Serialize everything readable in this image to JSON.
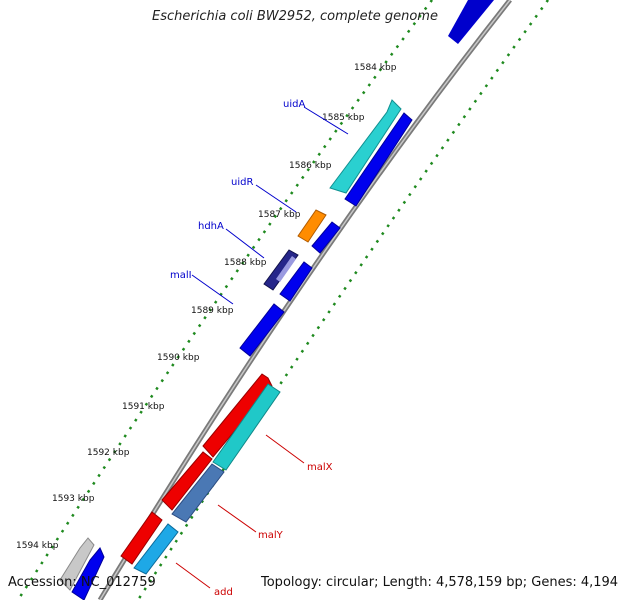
{
  "title": "Escherichia coli BW2952, complete genome",
  "footer": {
    "accession": "Accession: NC_012759",
    "stats": "Topology: circular; Length: 4,578,159 bp; Genes: 4,194"
  },
  "colors": {
    "backbone": "#8a8a8a",
    "tick_dots": "#1f8a1f",
    "forward_gene": "#0000ee",
    "reverse_gene": "#ee0000",
    "label_forward": "#0000cc",
    "label_reverse": "#cc0000"
  },
  "ticks": [
    "1584 kbp",
    "1585 kbp",
    "1586 kbp",
    "1587 kbp",
    "1588 kbp",
    "1589 kbp",
    "1590 kbp",
    "1591 kbp",
    "1592 kbp",
    "1593 kbp",
    "1594 kbp"
  ],
  "genes": [
    {
      "label": "uidA",
      "strand": "forward",
      "color": "#2ad0d0"
    },
    {
      "label": "uidR",
      "strand": "forward",
      "color": "#ff8c00"
    },
    {
      "label": "hdhA",
      "strand": "forward",
      "color": "#26268a"
    },
    {
      "label": "malI",
      "strand": "forward",
      "color": "#0000ee"
    },
    {
      "label": "malX",
      "strand": "reverse",
      "color": "#20c8c8"
    },
    {
      "label": "malY",
      "strand": "reverse",
      "color": "#4a78b4"
    },
    {
      "label": "add",
      "strand": "reverse",
      "color": "#1ea8e6"
    }
  ]
}
